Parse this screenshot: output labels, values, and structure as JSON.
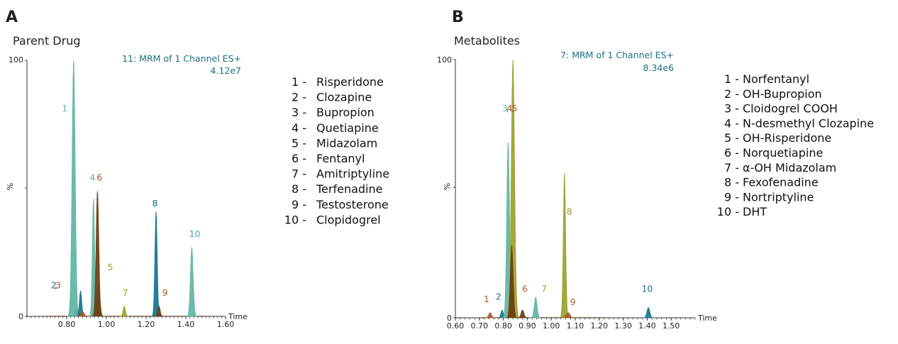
{
  "colors": {
    "c_teal_light": "#5fb4a3",
    "c_teal_dark": "#16728f",
    "c_rust": "#a9582a",
    "c_olive": "#9aa22a",
    "c_brown": "#6b3b12",
    "c_cyan": "#4ba6b5",
    "c_header": "#1a6f86"
  },
  "chart_data": [
    {
      "type": "line",
      "panel": "A",
      "title": "Parent Drug",
      "header": [
        "11: MRM of 1 Channel ES+",
        "4.12e7"
      ],
      "xlabel": "Time",
      "ylabel": "%",
      "xlim": [
        0.6,
        1.6
      ],
      "ylim": [
        0,
        100
      ],
      "xticks": [
        "0.80",
        "1.00",
        "1.20",
        "1.40",
        "1.60"
      ],
      "yticks": [
        "0",
        "%",
        "100"
      ],
      "peaks": [
        {
          "x": 0.85,
          "h": 3,
          "w": 0.009,
          "color": "c_rust"
        },
        {
          "x": 0.835,
          "h": 100,
          "w": 0.008,
          "color": "c_teal_light"
        },
        {
          "x": 0.87,
          "h": 10,
          "w": 0.006,
          "color": "c_teal_dark"
        },
        {
          "x": 0.88,
          "h": 2,
          "w": 0.008,
          "color": "c_rust"
        },
        {
          "x": 0.96,
          "h": 12,
          "w": 0.008,
          "color": "c_olive"
        },
        {
          "x": 0.935,
          "h": 46,
          "w": 0.006,
          "color": "c_teal_light"
        },
        {
          "x": 0.955,
          "h": 49,
          "w": 0.007,
          "color": "c_brown"
        },
        {
          "x": 1.09,
          "h": 4,
          "w": 0.006,
          "color": "c_olive"
        },
        {
          "x": 1.25,
          "h": 41,
          "w": 0.006,
          "color": "c_teal_dark"
        },
        {
          "x": 1.265,
          "h": 4,
          "w": 0.006,
          "color": "c_brown"
        },
        {
          "x": 1.43,
          "h": 27,
          "w": 0.007,
          "color": "c_teal_light"
        }
      ],
      "labels": [
        {
          "text": "1",
          "x": 0.79,
          "y": 80,
          "color": "c_teal_light"
        },
        {
          "text": "2",
          "x": 0.735,
          "y": 11,
          "color": "c_teal_dark"
        },
        {
          "text": ",",
          "x": 0.747,
          "y": 11,
          "color": "c_teal_dark"
        },
        {
          "text": "3",
          "x": 0.757,
          "y": 11,
          "color": "c_rust"
        },
        {
          "text": "4",
          "x": 0.93,
          "y": 53,
          "color": "c_teal_light"
        },
        {
          "text": "6",
          "x": 0.965,
          "y": 53,
          "color": "c_rust"
        },
        {
          "text": "5",
          "x": 1.02,
          "y": 18,
          "color": "c_olive"
        },
        {
          "text": "7",
          "x": 1.095,
          "y": 8,
          "color": "c_olive"
        },
        {
          "text": "8",
          "x": 1.245,
          "y": 43,
          "color": "c_teal_dark"
        },
        {
          "text": "9",
          "x": 1.295,
          "y": 8,
          "color": "c_rust"
        },
        {
          "text": "10",
          "x": 1.445,
          "y": 31,
          "color": "c_cyan"
        }
      ],
      "legend": [
        {
          "num": "1 -",
          "name": "Risperidone"
        },
        {
          "num": "2 -",
          "name": "Clozapine"
        },
        {
          "num": "3 -",
          "name": "Bupropion"
        },
        {
          "num": "4 -",
          "name": "Quetiapine"
        },
        {
          "num": "5 -",
          "name": "Midazolam"
        },
        {
          "num": "6 -",
          "name": "Fentanyl"
        },
        {
          "num": "7 -",
          "name": "Amitriptyline"
        },
        {
          "num": "8 -",
          "name": "Terfenadine"
        },
        {
          "num": "9 -",
          "name": "Testosterone"
        },
        {
          "num": "10 -",
          "name": "Clopidogrel"
        }
      ]
    },
    {
      "type": "line",
      "panel": "B",
      "title": "Metabolites",
      "header": [
        "7: MRM of 1 Channel ES+",
        "8.34e6"
      ],
      "xlabel": "Time",
      "ylabel": "%",
      "xlim": [
        0.6,
        1.6
      ],
      "ylim": [
        0,
        100
      ],
      "xticks": [
        "0.60",
        "0.70",
        "0.80",
        "0.90",
        "1.00",
        "1.10",
        "1.20",
        "1.30",
        "1.40",
        "1.50"
      ],
      "yticks": [
        "0",
        "%",
        "100"
      ],
      "peaks": [
        {
          "x": 0.745,
          "h": 2,
          "w": 0.006,
          "color": "c_rust"
        },
        {
          "x": 0.795,
          "h": 3,
          "w": 0.005,
          "color": "c_teal_dark"
        },
        {
          "x": 0.82,
          "h": 68,
          "w": 0.006,
          "color": "c_teal_light"
        },
        {
          "x": 0.84,
          "h": 100,
          "w": 0.007,
          "color": "c_olive"
        },
        {
          "x": 0.835,
          "h": 28,
          "w": 0.006,
          "color": "c_brown"
        },
        {
          "x": 0.88,
          "h": 3,
          "w": 0.006,
          "color": "c_brown"
        },
        {
          "x": 0.935,
          "h": 8,
          "w": 0.006,
          "color": "c_teal_light"
        },
        {
          "x": 1.055,
          "h": 56,
          "w": 0.005,
          "color": "c_olive"
        },
        {
          "x": 1.07,
          "h": 2,
          "w": 0.008,
          "color": "c_rust"
        },
        {
          "x": 1.405,
          "h": 4,
          "w": 0.006,
          "color": "c_teal_dark"
        }
      ],
      "labels": [
        {
          "text": "1",
          "x": 0.73,
          "y": 6,
          "color": "c_rust"
        },
        {
          "text": "2",
          "x": 0.78,
          "y": 7,
          "color": "c_teal_dark"
        },
        {
          "text": "3",
          "x": 0.807,
          "y": 80,
          "color": "c_teal_light"
        },
        {
          "text": ",",
          "x": 0.817,
          "y": 80,
          "color": "c_rust"
        },
        {
          "text": "4",
          "x": 0.826,
          "y": 80,
          "color": "c_rust"
        },
        {
          "text": ",",
          "x": 0.837,
          "y": 80,
          "color": "c_rust"
        },
        {
          "text": "5",
          "x": 0.847,
          "y": 80,
          "color": "c_rust"
        },
        {
          "text": "6",
          "x": 0.89,
          "y": 10,
          "color": "c_rust"
        },
        {
          "text": "7",
          "x": 0.97,
          "y": 10,
          "color": "c_olive"
        },
        {
          "text": "8",
          "x": 1.075,
          "y": 40,
          "color": "c_olive"
        },
        {
          "text": "9",
          "x": 1.09,
          "y": 5,
          "color": "c_rust"
        },
        {
          "text": "10",
          "x": 1.4,
          "y": 10,
          "color": "c_teal_dark"
        }
      ],
      "legend": [
        {
          "num": "1 -",
          "name": "Norfentanyl"
        },
        {
          "num": "2 -",
          "name": "OH-Bupropion"
        },
        {
          "num": "3 -",
          "name": "Cloidogrel COOH"
        },
        {
          "num": "4 -",
          "name": "N-desmethyl Clozapine"
        },
        {
          "num": "5 -",
          "name": "OH-Risperidone"
        },
        {
          "num": "6 -",
          "name": "Norquetiapine"
        },
        {
          "num": "7 -",
          "name": "α-OH Midazolam"
        },
        {
          "num": "8 -",
          "name": "Fexofenadine"
        },
        {
          "num": "9 -",
          "name": "Nortriptyline"
        },
        {
          "num": "10 -",
          "name": "DHT"
        }
      ]
    }
  ]
}
